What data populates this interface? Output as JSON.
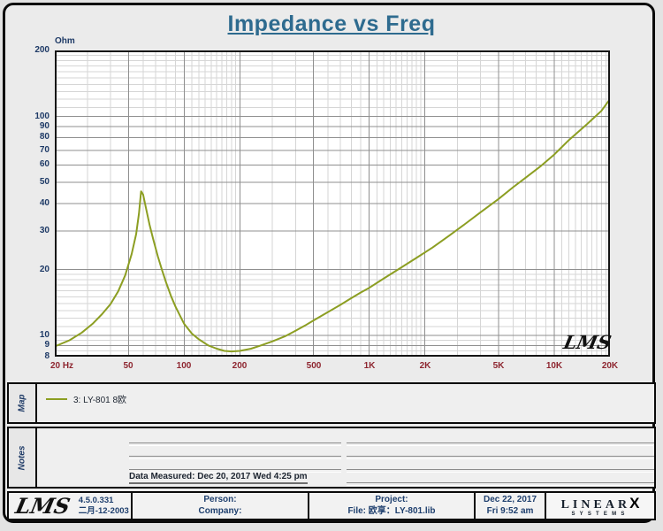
{
  "title": "Impedance vs Freq",
  "chart_data": {
    "type": "line",
    "title": "Impedance vs Freq",
    "watermark": "LMS",
    "x_axis": {
      "unit": "Hz",
      "scale": "log",
      "min": 20,
      "max": 20000,
      "tick_values": [
        20,
        50,
        100,
        200,
        500,
        1000,
        2000,
        5000,
        10000,
        20000
      ],
      "tick_labels": [
        "20 Hz",
        "50",
        "100",
        "200",
        "500",
        "1K",
        "2K",
        "5K",
        "10K",
        "20K"
      ]
    },
    "y_axis": {
      "label": "Ohm",
      "scale": "log",
      "min": 8,
      "max": 200,
      "tick_values": [
        200,
        100,
        90,
        80,
        70,
        60,
        50,
        40,
        30,
        20,
        10,
        9,
        8
      ],
      "tick_labels": [
        "200",
        "100",
        "90",
        "80",
        "70",
        "60",
        "50",
        "40",
        "30",
        "20",
        "10",
        "9",
        "8"
      ]
    },
    "grid": {
      "major_color": "#8f8f8f",
      "minor_color": "#d6d6d6"
    },
    "series": [
      {
        "name": "3: LY-801 8欧",
        "color": "#8c9e22",
        "points": [
          [
            20,
            8.9
          ],
          [
            24,
            9.5
          ],
          [
            28,
            10.3
          ],
          [
            32,
            11.3
          ],
          [
            36,
            12.5
          ],
          [
            40,
            13.9
          ],
          [
            44,
            15.9
          ],
          [
            48,
            18.8
          ],
          [
            52,
            23.5
          ],
          [
            55,
            29
          ],
          [
            57,
            36
          ],
          [
            58.5,
            45.5
          ],
          [
            60,
            44
          ],
          [
            62,
            38.5
          ],
          [
            65,
            32
          ],
          [
            68,
            27.5
          ],
          [
            72,
            23
          ],
          [
            76,
            19.8
          ],
          [
            80,
            17.4
          ],
          [
            85,
            15.1
          ],
          [
            90,
            13.5
          ],
          [
            95,
            12.3
          ],
          [
            100,
            11.3
          ],
          [
            110,
            10.2
          ],
          [
            120,
            9.6
          ],
          [
            135,
            9.0
          ],
          [
            150,
            8.7
          ],
          [
            165,
            8.5
          ],
          [
            180,
            8.45
          ],
          [
            200,
            8.5
          ],
          [
            230,
            8.7
          ],
          [
            260,
            9.0
          ],
          [
            300,
            9.4
          ],
          [
            350,
            9.9
          ],
          [
            400,
            10.5
          ],
          [
            450,
            11.1
          ],
          [
            500,
            11.7
          ],
          [
            600,
            12.8
          ],
          [
            700,
            13.8
          ],
          [
            800,
            14.8
          ],
          [
            900,
            15.7
          ],
          [
            1000,
            16.5
          ],
          [
            1200,
            18.2
          ],
          [
            1500,
            20.5
          ],
          [
            1800,
            22.6
          ],
          [
            2200,
            25.2
          ],
          [
            2700,
            28.5
          ],
          [
            3300,
            32.3
          ],
          [
            4000,
            36.5
          ],
          [
            5000,
            42
          ],
          [
            6000,
            47.5
          ],
          [
            7000,
            52.5
          ],
          [
            8500,
            59.5
          ],
          [
            10000,
            67
          ],
          [
            12000,
            78
          ],
          [
            15000,
            92
          ],
          [
            18000,
            106
          ],
          [
            20000,
            120
          ]
        ]
      }
    ]
  },
  "map_section": {
    "label": "Map",
    "legend_text": "3: LY-801 8欧"
  },
  "notes_section": {
    "label": "Notes",
    "data_measured": "Data Measured: Dec 20, 2017  Wed  4:25 pm"
  },
  "footer": {
    "logo_text": "LMS",
    "version": "4.5.0.331",
    "build_date": "二月-12-2003",
    "person_label": "Person:",
    "company_label": "Company:",
    "project_label": "Project:",
    "file_label": "File: 欧享：LY-801.lib",
    "date": "Dec 22, 2017",
    "time": "Fri  9:52 am",
    "brand_name": "LINEAR",
    "brand_x": "X",
    "brand_sub": "SYSTEMS"
  }
}
